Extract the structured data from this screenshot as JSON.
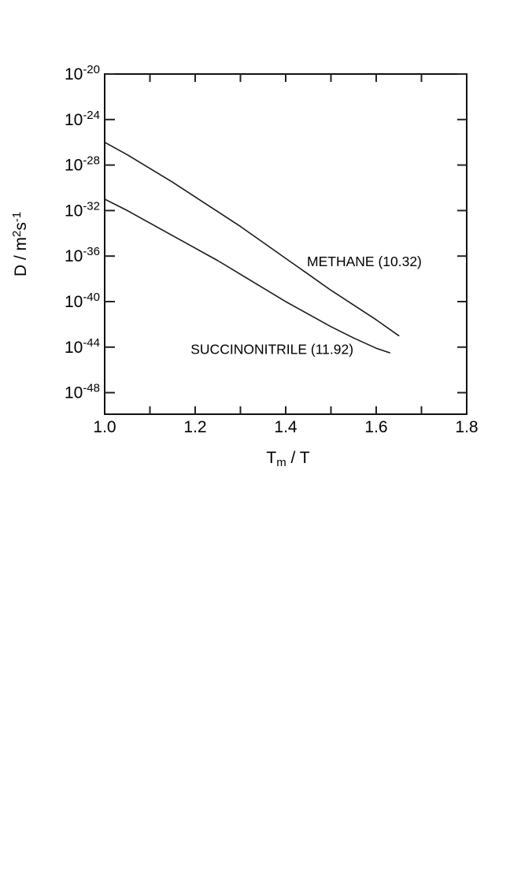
{
  "figure": {
    "background": "#ffffff",
    "frame_color": "#111111",
    "tick_color": "#222222",
    "line_color": "#1a1a1a",
    "text_color": "#000000"
  },
  "chart_data": {
    "type": "line",
    "title": "",
    "xlabel": "Tm / T",
    "xlabel_parts": [
      {
        "t": "T"
      },
      {
        "t": "m",
        "shift": "sub"
      },
      {
        "t": " / T"
      }
    ],
    "ylabel": "D / m2s-1",
    "ylabel_parts": [
      {
        "t": "D / m"
      },
      {
        "t": "2",
        "shift": "sup"
      },
      {
        "t": "s"
      },
      {
        "t": "-1",
        "shift": "sup"
      }
    ],
    "x_range": [
      1.0,
      1.8
    ],
    "x_major_ticks": [
      {
        "v": 1.0,
        "label": "1.0"
      },
      {
        "v": 1.2,
        "label": "1.2"
      },
      {
        "v": 1.4,
        "label": "1.4"
      },
      {
        "v": 1.6,
        "label": "1.6"
      },
      {
        "v": 1.8,
        "label": "1.8"
      }
    ],
    "x_inner_ticks": [
      1.1,
      1.2,
      1.3,
      1.4,
      1.5,
      1.6,
      1.7
    ],
    "y_scale": "log10",
    "y_tick_exponents": [
      -20,
      -24,
      -28,
      -32,
      -36,
      -40,
      -44,
      -48
    ],
    "y_range_exponents": [
      -49.8,
      -20
    ],
    "grid": false,
    "legend_position": "inline-annotations",
    "series": [
      {
        "name": "methane",
        "annotation": {
          "text": "METHANE (10.32)",
          "x": 1.447,
          "log10_D": -36.9
        },
        "points": [
          [
            1.0,
            -26.0
          ],
          [
            1.05,
            -27.1
          ],
          [
            1.1,
            -28.3
          ],
          [
            1.15,
            -29.5
          ],
          [
            1.2,
            -30.8
          ],
          [
            1.25,
            -32.1
          ],
          [
            1.3,
            -33.4
          ],
          [
            1.35,
            -34.8
          ],
          [
            1.4,
            -36.2
          ],
          [
            1.45,
            -37.6
          ],
          [
            1.5,
            -39.0
          ],
          [
            1.55,
            -40.3
          ],
          [
            1.6,
            -41.6
          ],
          [
            1.65,
            -43.0
          ]
        ]
      },
      {
        "name": "succinonitrile",
        "annotation": {
          "text": "SUCCINONITRILE (11.92)",
          "x": 1.19,
          "log10_D": -44.6
        },
        "points": [
          [
            1.0,
            -31.0
          ],
          [
            1.05,
            -32.0
          ],
          [
            1.1,
            -33.1
          ],
          [
            1.15,
            -34.2
          ],
          [
            1.2,
            -35.3
          ],
          [
            1.25,
            -36.4
          ],
          [
            1.3,
            -37.6
          ],
          [
            1.35,
            -38.8
          ],
          [
            1.4,
            -40.0
          ],
          [
            1.45,
            -41.1
          ],
          [
            1.5,
            -42.2
          ],
          [
            1.55,
            -43.2
          ],
          [
            1.6,
            -44.1
          ],
          [
            1.63,
            -44.5
          ]
        ]
      }
    ]
  }
}
